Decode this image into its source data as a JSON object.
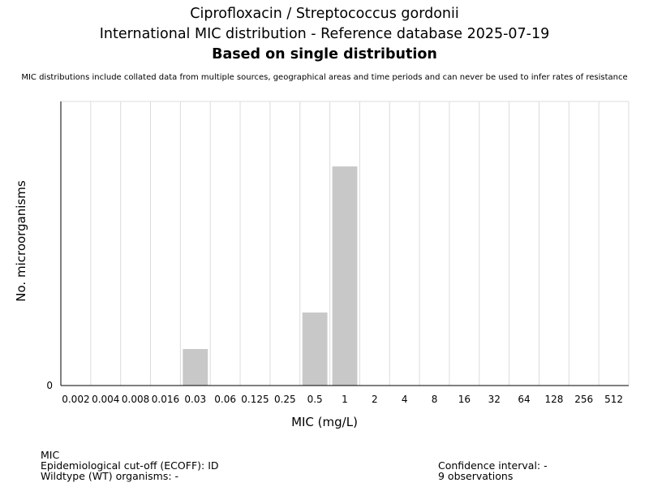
{
  "title_line1": "Ciprofloxacin / Streptococcus gordonii",
  "title_line2": "International MIC distribution - Reference database 2025-07-19",
  "title_line3": "Based on single distribution",
  "disclaimer": "MIC distributions include collated data from multiple sources, geographical areas and time periods and can never be used to infer rates of resistance",
  "footer": {
    "mic": "MIC",
    "ecoff": "Epidemiological cut-off (ECOFF): ID",
    "wildtype": "Wildtype (WT) organisms:  -",
    "confidence": "Confidence interval: -",
    "observations": "9 observations"
  },
  "chart_data": {
    "type": "bar",
    "xlabel": "MIC (mg/L)",
    "ylabel": "No. microorganisms",
    "categories": [
      "0.002",
      "0.004",
      "0.008",
      "0.016",
      "0.03",
      "0.06",
      "0.125",
      "0.25",
      "0.5",
      "1",
      "2",
      "4",
      "8",
      "16",
      "32",
      "64",
      "128",
      "256",
      "512"
    ],
    "values": [
      0,
      0,
      0,
      0,
      1,
      0,
      0,
      0,
      2,
      6,
      0,
      0,
      0,
      0,
      0,
      0,
      0,
      0,
      0
    ],
    "ytick_labels": [
      "0"
    ],
    "ylim": [
      0,
      7.78
    ],
    "grid": true,
    "bar_color": "#c8c8c8"
  }
}
